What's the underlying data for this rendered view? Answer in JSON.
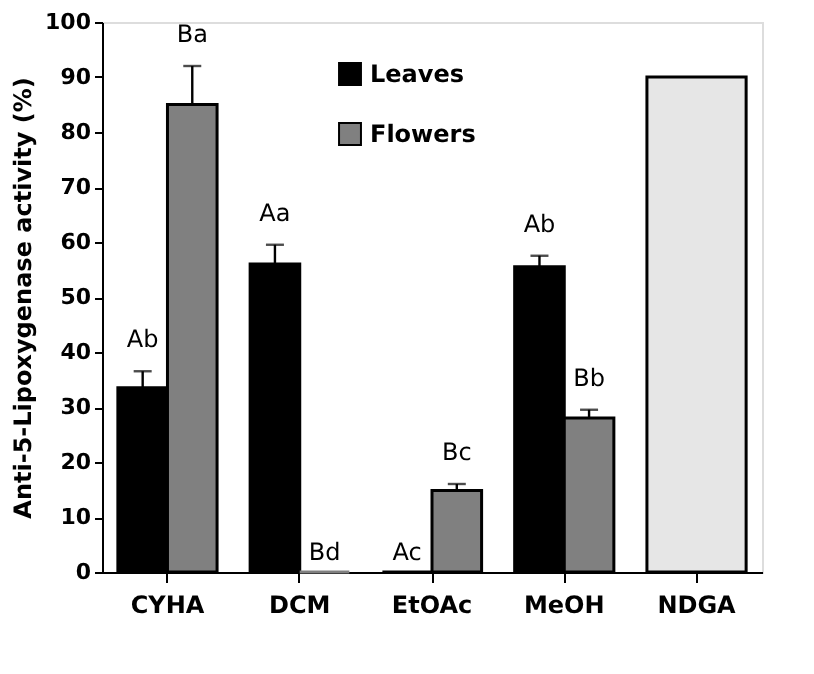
{
  "chart_data": {
    "type": "bar",
    "ylabel": "Anti-5-Lipoxygenase activity (%)",
    "categories": [
      "CYHA",
      "DCM",
      "EtOAc",
      "MeOH",
      "NDGA"
    ],
    "series": [
      {
        "name": "Leaves",
        "color": "#000000",
        "values": [
          33.5,
          56,
          0,
          55.5,
          null
        ],
        "errors": [
          [
            33.5,
            36.5
          ],
          [
            56,
            59.5
          ],
          null,
          [
            55.5,
            57.5
          ],
          null
        ],
        "value_labels": [
          "Ab",
          "Aa",
          "Ac",
          "Ab",
          null
        ]
      },
      {
        "name": "Flowers",
        "color": "#808080",
        "values": [
          85,
          0,
          14.8,
          28,
          null
        ],
        "errors": [
          [
            85,
            92
          ],
          null,
          [
            14.8,
            16
          ],
          [
            28,
            29.5
          ],
          null
        ],
        "value_labels": [
          "Ba",
          "Bd",
          "Bc",
          "Bb",
          null
        ]
      },
      {
        "color": "#e6e6e6",
        "values": [
          null,
          null,
          null,
          null,
          90
        ]
      }
    ],
    "ylim": [
      0,
      100
    ],
    "yticks": [
      0,
      10,
      20,
      30,
      40,
      50,
      60,
      70,
      80,
      90,
      100
    ],
    "grid": false,
    "legend": "top left"
  }
}
